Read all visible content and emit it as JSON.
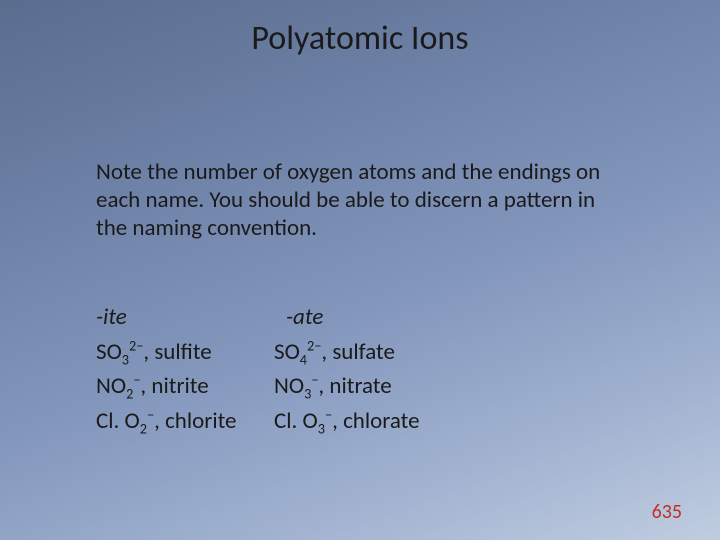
{
  "title": "Polyatomic Ions",
  "paragraph": "Note the number of oxygen atoms and the endings on each name. You should be able to discern a pattern in the naming convention.",
  "headers": {
    "ite": "-ite",
    "ate": "-ate"
  },
  "rows": [
    {
      "ite": {
        "elem": "SO",
        "sub1": "3",
        "sup": "2−",
        "name": "sulfite"
      },
      "ate": {
        "elem": "SO",
        "sub1": "4",
        "sup": "2−",
        "name": "sulfate"
      }
    },
    {
      "ite": {
        "elem": "NO",
        "sub1": "2",
        "sup": "−",
        "name": "nitrite"
      },
      "ate": {
        "elem": "NO",
        "sub1": "3",
        "sup": "−",
        "name": "nitrate"
      }
    },
    {
      "ite": {
        "elem": "Cl. O",
        "sub1": "2",
        "sup": "−",
        "name": "chlorite"
      },
      "ate": {
        "elem": "Cl. O",
        "sub1": "3",
        "sup": "−",
        "name": "chlorate"
      }
    }
  ],
  "pagenum": "635",
  "colors": {
    "pagenum": "#c0302a",
    "text": "#1a1a1a",
    "bg_top": "#5a6d8f",
    "bg_bottom": "#c0cde0"
  }
}
